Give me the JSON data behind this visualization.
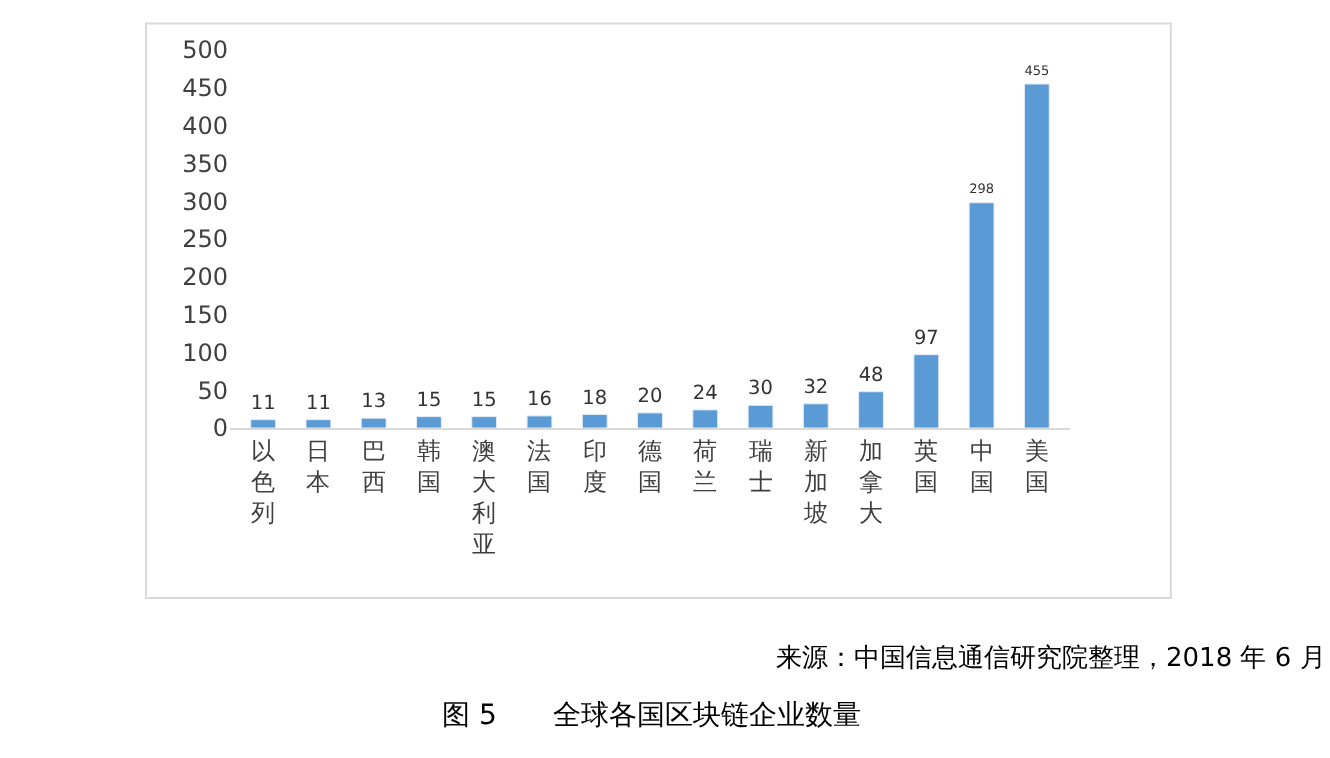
{
  "chart_data": {
    "type": "bar",
    "categories": [
      "以色列",
      "日本",
      "巴西",
      "韩国",
      "澳大利亚",
      "法国",
      "印度",
      "德国",
      "荷兰",
      "瑞士",
      "新加坡",
      "加拿大",
      "英国",
      "中国",
      "美国"
    ],
    "values": [
      11,
      11,
      13,
      15,
      15,
      16,
      18,
      20,
      24,
      30,
      32,
      48,
      97,
      298,
      455
    ],
    "color": "#5b9bd5",
    "ylim": [
      0,
      500
    ],
    "yticks": [
      0,
      50,
      100,
      150,
      200,
      250,
      300,
      350,
      400,
      450,
      500
    ],
    "data_labels": true,
    "grid": false,
    "legend": false,
    "annotations": [
      "来源：中国信息通信研究院整理，2018 年 6 月",
      "图 5　　全球各国区块链企业数量"
    ]
  }
}
